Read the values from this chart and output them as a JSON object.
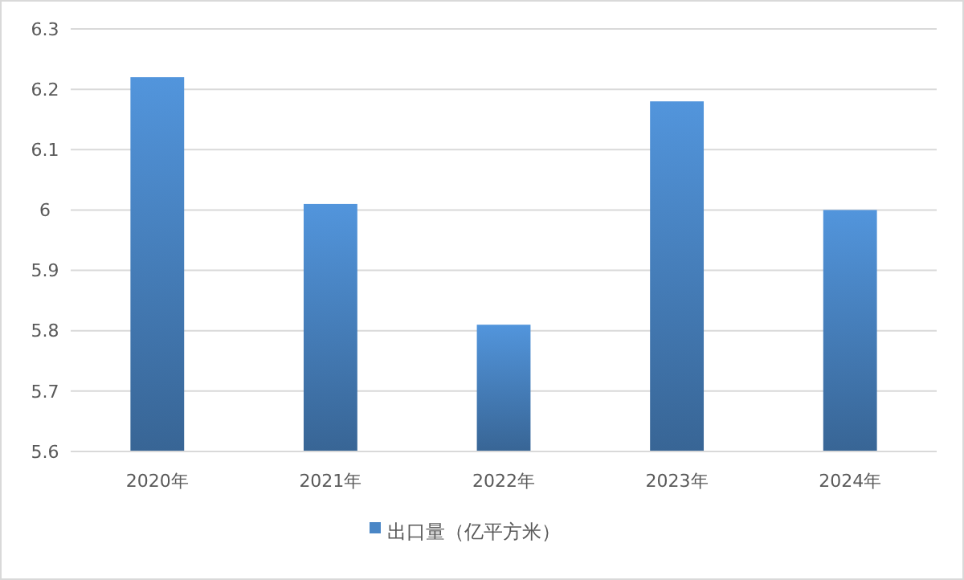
{
  "chart_data": {
    "type": "bar",
    "categories": [
      "2020年",
      "2021年",
      "2022年",
      "2023年",
      "2024年"
    ],
    "series": [
      {
        "name": "出口量（亿平方米）",
        "color": "#4a86c6",
        "values": [
          6.22,
          6.01,
          5.81,
          6.18,
          6.0
        ]
      }
    ],
    "ylim": [
      5.6,
      6.3
    ],
    "yticks": [
      5.6,
      5.7,
      5.8,
      5.9,
      6,
      6.1,
      6.2,
      6.3
    ],
    "grid": "y",
    "legend": "bottom"
  }
}
